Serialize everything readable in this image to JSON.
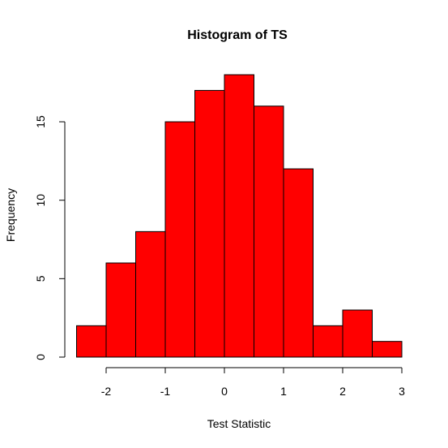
{
  "chart_data": {
    "type": "bar",
    "title": "Histogram of TS",
    "xlabel": "Test Statistic",
    "ylabel": "Frequency",
    "bin_edges": [
      -2.5,
      -2,
      -1.5,
      -1,
      -0.5,
      0,
      0.5,
      1,
      1.5,
      2,
      2.5,
      3
    ],
    "values": [
      2,
      6,
      8,
      15,
      17,
      18,
      16,
      12,
      2,
      3,
      1
    ],
    "xlim": [
      -2.5,
      3
    ],
    "ylim": [
      0,
      18
    ],
    "x_ticks": [
      -2,
      -1,
      0,
      1,
      2,
      3
    ],
    "y_ticks": [
      0,
      5,
      10,
      15
    ],
    "bar_color": "#ff0000",
    "grid": false
  }
}
